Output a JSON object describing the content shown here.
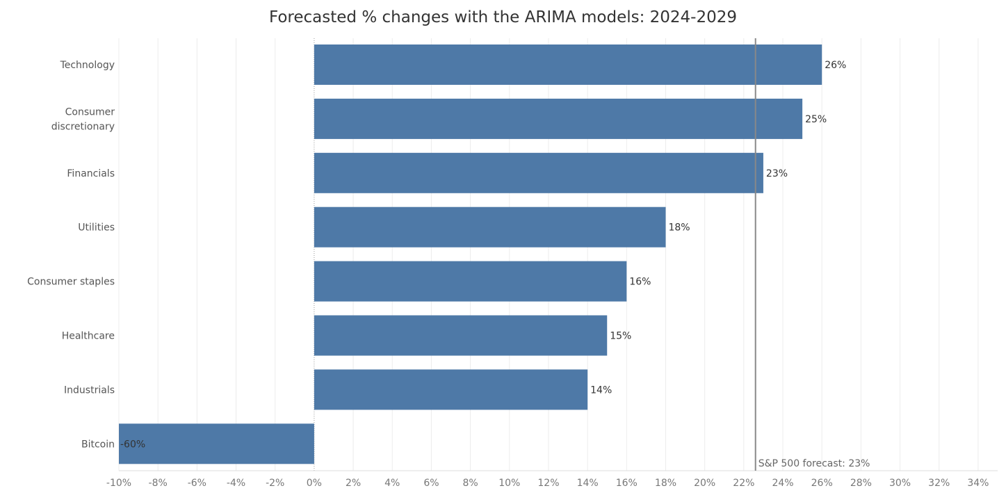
{
  "chart_data": {
    "type": "bar",
    "orientation": "horizontal",
    "title": "Forecasted % changes with the ARIMA models: 2024-2029",
    "xlabel": "",
    "ylabel": "",
    "categories": [
      "Technology",
      "Consumer discretionary",
      "Financials",
      "Utilities",
      "Consumer staples",
      "Healthcare",
      "Industrials",
      "Bitcoin"
    ],
    "category_lines": [
      [
        "Technology"
      ],
      [
        "Consumer",
        "discretionary"
      ],
      [
        "Financials"
      ],
      [
        "Utilities"
      ],
      [
        "Consumer staples"
      ],
      [
        "Healthcare"
      ],
      [
        "Industrials"
      ],
      [
        "Bitcoin"
      ]
    ],
    "values": [
      26,
      25,
      23,
      18,
      16,
      15,
      14,
      -60
    ],
    "data_labels": [
      "26%",
      "25%",
      "23%",
      "18%",
      "16%",
      "15%",
      "14%",
      "-60%"
    ],
    "xlim": [
      -10,
      35
    ],
    "x_ticks": [
      -10,
      -8,
      -6,
      -4,
      -2,
      0,
      2,
      4,
      6,
      8,
      10,
      12,
      14,
      16,
      18,
      20,
      22,
      24,
      26,
      28,
      30,
      32,
      34
    ],
    "x_tick_labels": [
      "-10%",
      "-8%",
      "-6%",
      "-4%",
      "-2%",
      "0%",
      "2%",
      "4%",
      "6%",
      "8%",
      "10%",
      "12%",
      "14%",
      "16%",
      "18%",
      "20%",
      "22%",
      "24%",
      "26%",
      "28%",
      "30%",
      "32%",
      "34%"
    ],
    "grid": true,
    "reference_line": {
      "value": 22.6,
      "label": "S&P 500 forecast: 23%"
    },
    "bar_color": "#4e79a7",
    "reference_line_color": "#888888"
  }
}
